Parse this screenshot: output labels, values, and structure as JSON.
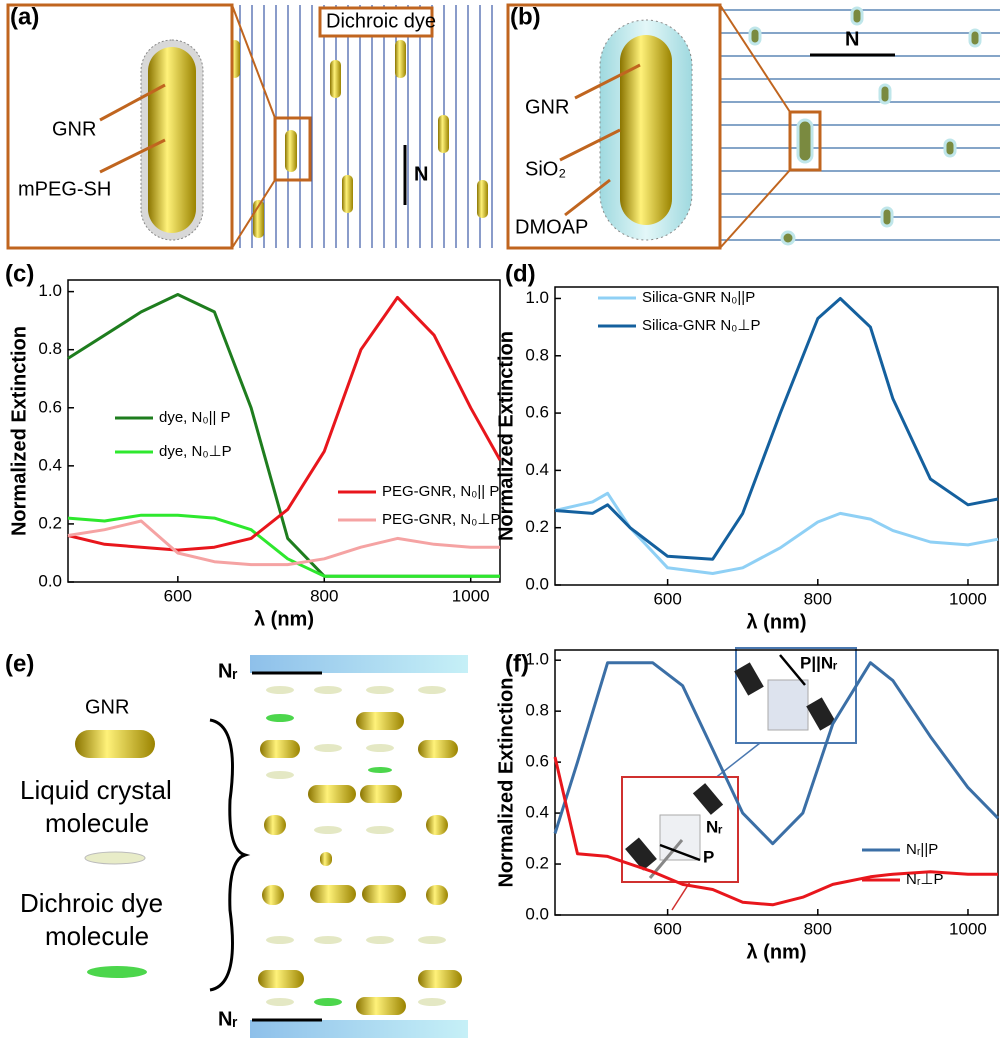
{
  "panels": {
    "a": {
      "label": "(a)",
      "texts": [
        "GNR",
        "mPEG-SH",
        "Dichroic dye",
        "N"
      ]
    },
    "b": {
      "label": "(b)",
      "texts": [
        "GNR",
        "SiO₂",
        "DMOAP",
        "N"
      ]
    },
    "c": {
      "label": "(c)"
    },
    "d": {
      "label": "(d)"
    },
    "e": {
      "label": "(e)",
      "texts": [
        "GNR",
        "Liquid crystal",
        "molecule",
        "Dichroic dye",
        "molecule",
        "Nᵣ",
        "Nᵣ"
      ]
    },
    "f": {
      "label": "(f)",
      "inset_texts": [
        "P||Nᵣ",
        "Nᵣ",
        "P"
      ]
    }
  },
  "chart_data": [
    {
      "type": "line",
      "x_label": "λ (nm)",
      "y_label": "Normalized Extinction",
      "x": [
        450,
        500,
        550,
        600,
        650,
        700,
        750,
        800,
        850,
        900,
        950,
        1000,
        1040
      ],
      "xlim": [
        450,
        1040
      ],
      "ylim": [
        0,
        1.04
      ],
      "xticks": [
        600,
        800,
        1000
      ],
      "yticks": [
        {
          "value": 0,
          "label": "0.0"
        },
        0.2,
        0.4,
        0.6,
        0.8,
        {
          "value": 1,
          "label": "1.0"
        }
      ],
      "series": [
        {
          "name": "dye, N₀|| P",
          "color": "#1e7d1e",
          "values": [
            0.77,
            0.85,
            0.93,
            0.99,
            0.93,
            0.6,
            0.15,
            0.02,
            0.02,
            0.02,
            0.02,
            0.02,
            0.02
          ]
        },
        {
          "name": "dye, N₀⊥P",
          "color": "#2ee82e",
          "values": [
            0.22,
            0.21,
            0.23,
            0.23,
            0.22,
            0.18,
            0.08,
            0.02,
            0.02,
            0.02,
            0.02,
            0.02,
            0.02
          ]
        },
        {
          "name": "PEG-GNR, N₀|| P",
          "color": "#e8161c",
          "values": [
            0.16,
            0.13,
            0.12,
            0.11,
            0.12,
            0.15,
            0.25,
            0.45,
            0.8,
            0.98,
            0.85,
            0.6,
            0.42
          ]
        },
        {
          "name": "PEG-GNR, N₀⊥P",
          "color": "#f5a3a3",
          "values": [
            0.16,
            0.18,
            0.21,
            0.1,
            0.07,
            0.06,
            0.06,
            0.08,
            0.12,
            0.15,
            0.13,
            0.12,
            0.12
          ]
        }
      ]
    },
    {
      "type": "line",
      "x_label": "λ (nm)",
      "y_label": "Normalized Extinction",
      "x": [
        450,
        500,
        520,
        550,
        600,
        660,
        700,
        750,
        800,
        830,
        870,
        900,
        950,
        1000,
        1040
      ],
      "xlim": [
        450,
        1040
      ],
      "ylim": [
        0,
        1.04
      ],
      "xticks": [
        600,
        800,
        1000
      ],
      "yticks": [
        {
          "value": 0,
          "label": "0.0"
        },
        0.2,
        0.4,
        0.6,
        0.8,
        {
          "value": 1,
          "label": "1.0"
        }
      ],
      "series": [
        {
          "name": "Silica-GNR N₀||P",
          "color": "#8fd0f5",
          "values": [
            0.26,
            0.29,
            0.32,
            0.2,
            0.06,
            0.04,
            0.06,
            0.13,
            0.22,
            0.25,
            0.23,
            0.19,
            0.15,
            0.14,
            0.16
          ]
        },
        {
          "name": "Silica-GNR N₀⊥P",
          "color": "#14609e",
          "values": [
            0.26,
            0.25,
            0.28,
            0.2,
            0.1,
            0.09,
            0.25,
            0.6,
            0.93,
            1.0,
            0.9,
            0.65,
            0.37,
            0.28,
            0.3
          ]
        }
      ]
    },
    {
      "type": "line",
      "x_label": "λ (nm)",
      "y_label": "Normalized Extinction",
      "x": [
        450,
        480,
        520,
        580,
        620,
        660,
        700,
        740,
        780,
        820,
        870,
        900,
        950,
        1000,
        1040
      ],
      "xlim": [
        450,
        1040
      ],
      "ylim": [
        0,
        1.04
      ],
      "xticks": [
        600,
        800,
        1000
      ],
      "yticks": [
        {
          "value": 0,
          "label": "0.0"
        },
        0.2,
        0.4,
        0.6,
        0.8,
        {
          "value": 1,
          "label": "1.0"
        }
      ],
      "series": [
        {
          "name": "Nᵣ||P",
          "color": "#3b6fa6",
          "values": [
            0.32,
            0.6,
            0.99,
            0.99,
            0.9,
            0.65,
            0.4,
            0.28,
            0.4,
            0.75,
            0.99,
            0.92,
            0.7,
            0.5,
            0.38
          ]
        },
        {
          "name": "Nᵣ⊥P",
          "color": "#e8161c",
          "values": [
            0.62,
            0.24,
            0.23,
            0.17,
            0.12,
            0.1,
            0.05,
            0.04,
            0.07,
            0.12,
            0.15,
            0.16,
            0.17,
            0.16,
            0.16
          ]
        }
      ]
    }
  ]
}
